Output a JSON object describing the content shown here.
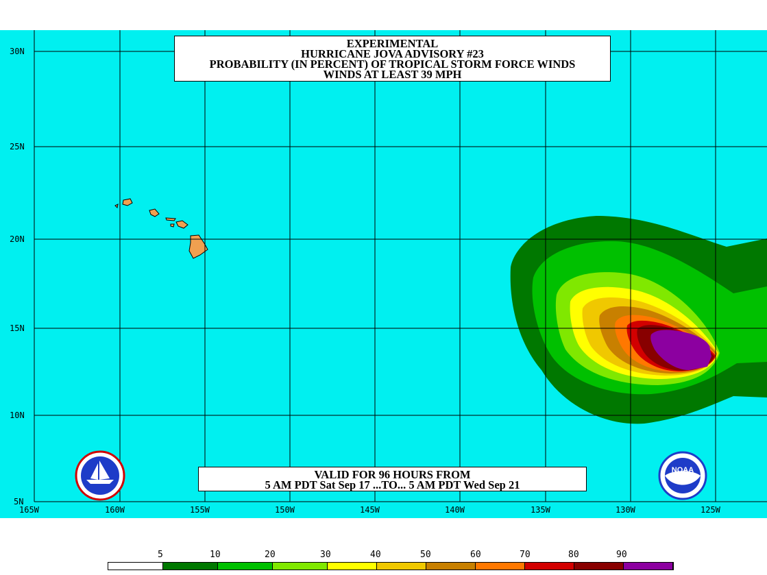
{
  "title": {
    "line1": "EXPERIMENTAL",
    "line2": "HURRICANE JOVA ADVISORY #23",
    "line3": "PROBABILITY (IN PERCENT) OF TROPICAL STORM FORCE WINDS",
    "line4": "WINDS AT LEAST 39 MPH"
  },
  "valid": {
    "line1": "VALID FOR 96 HOURS FROM",
    "line2": "5 AM PDT Sat Sep 17 ...TO... 5 AM PDT Wed Sep 21"
  },
  "axes": {
    "lat_labels": [
      "30N",
      "25N",
      "20N",
      "15N",
      "10N",
      "5N"
    ],
    "lon_labels": [
      "165W",
      "160W",
      "155W",
      "150W",
      "145W",
      "140W",
      "135W",
      "130W",
      "125W"
    ]
  },
  "legend": {
    "values": [
      "5",
      "10",
      "20",
      "30",
      "40",
      "50",
      "60",
      "70",
      "80",
      "90"
    ],
    "colors": [
      "#ffffff",
      "#007800",
      "#00c000",
      "#80e800",
      "#ffff00",
      "#f0c800",
      "#c88000",
      "#ff7800",
      "#d20000",
      "#880000",
      "#8c00a0"
    ]
  },
  "colors": {
    "ocean": "#00f0f0",
    "land": "#f0a050",
    "grid": "#000000"
  },
  "logos": {
    "left": "nws-logo-icon",
    "right": "noaa-logo-icon",
    "right_text": "NOAA"
  }
}
